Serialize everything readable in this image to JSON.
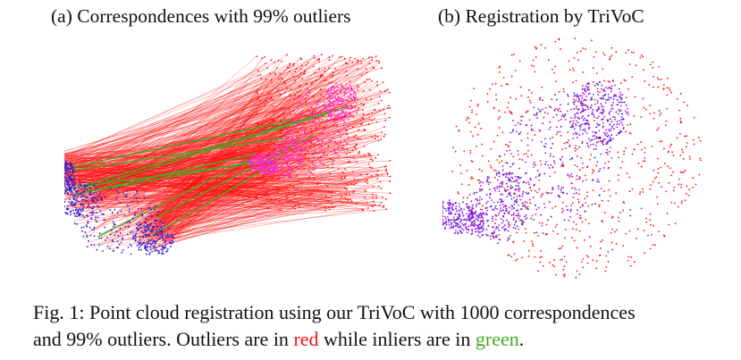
{
  "panels": {
    "a": {
      "title": "(a) Correspondences with 99% outliers"
    },
    "b": {
      "title": "(b) Registration by TriVoC"
    }
  },
  "caption": {
    "line1": "Fig. 1: Point cloud registration using our TriVoC with 1000 correspondences",
    "line2_prefix": "and 99% outliers. Outliers are in ",
    "red_word": "red",
    "middle": " while inliers are in ",
    "green_word": "green",
    "suffix": "."
  },
  "colors": {
    "outlier": "#ff1010",
    "inlier": "#44aa22",
    "source_cloud": "#2a1bd6",
    "target_cloud": "#ff22dd",
    "registered_cloud": "#9a10ee"
  }
}
